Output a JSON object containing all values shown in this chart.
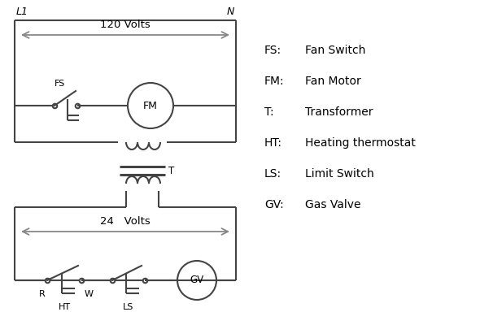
{
  "bg_color": "#ffffff",
  "line_color": "#444444",
  "gray_color": "#888888",
  "text_color": "#000000",
  "legend": [
    [
      "FS:",
      "Fan Switch"
    ],
    [
      "FM:",
      "Fan Motor"
    ],
    [
      "T:",
      "Transformer"
    ],
    [
      "HT:",
      "Heating thermostat"
    ],
    [
      "LS:",
      "Limit Switch"
    ],
    [
      "GV:",
      "Gas Valve"
    ]
  ],
  "label_L1": "L1",
  "label_N": "N",
  "label_120V": "120 Volts",
  "label_24V": "24   Volts",
  "label_T": "T",
  "label_FS": "FS",
  "label_FM": "FM",
  "label_GV": "GV",
  "label_R": "R",
  "label_W": "W",
  "label_HT": "HT",
  "label_LS": "LS"
}
